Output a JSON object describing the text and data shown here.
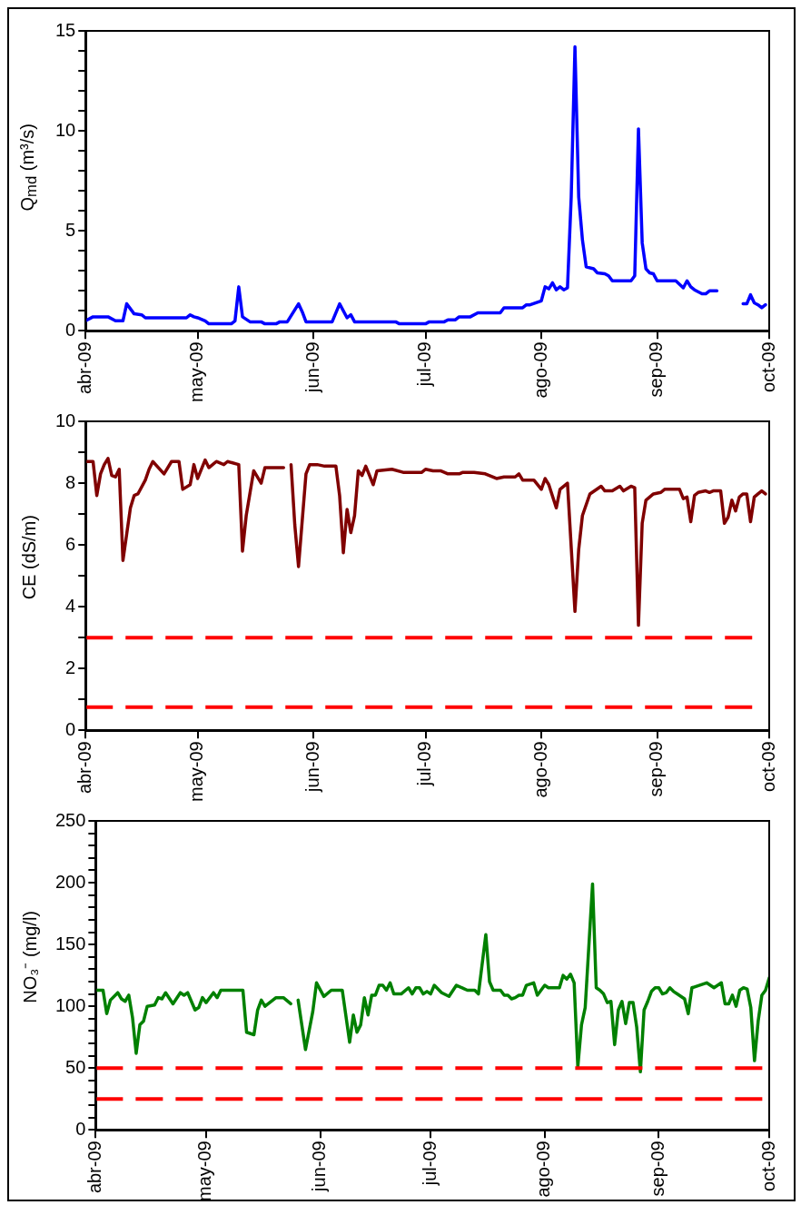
{
  "chart_data": [
    {
      "type": "line",
      "ylabel": "Q$_{md}$ (m³/s)",
      "marker": "none",
      "line_style": "solid",
      "xlim": [
        "2009-04-01",
        "2009-10-01"
      ],
      "xticks": [
        {
          "value": "2009-04-01",
          "label": "abr-09"
        },
        {
          "value": "2009-05-01",
          "label": "may-09"
        },
        {
          "value": "2009-06-01",
          "label": "jun-09"
        },
        {
          "value": "2009-07-01",
          "label": "jul-09"
        },
        {
          "value": "2009-08-01",
          "label": "ago-09"
        },
        {
          "value": "2009-09-01",
          "label": "sep-09"
        },
        {
          "value": "2009-10-01",
          "label": "oct-09"
        }
      ],
      "ylim": [
        0,
        15
      ],
      "yticks": [
        0,
        {
          "value": 1,
          "label": null
        },
        {
          "value": 2,
          "label": null
        },
        {
          "value": 3,
          "label": null
        },
        {
          "value": 4,
          "label": null
        },
        5,
        {
          "value": 6,
          "label": null
        },
        {
          "value": 7,
          "label": null
        },
        {
          "value": 8,
          "label": null
        },
        {
          "value": 9,
          "label": null
        },
        10,
        {
          "value": 11,
          "label": null
        },
        {
          "value": 12,
          "label": null
        },
        {
          "value": 13,
          "label": null
        },
        {
          "value": 14,
          "label": null
        },
        15
      ],
      "x": [
        "2009-04-01",
        "2009-04-03",
        "2009-04-07",
        "2009-04-09",
        "2009-04-11",
        "2009-04-12",
        "2009-04-14",
        "2009-04-16",
        "2009-04-17",
        "2009-04-28",
        "2009-04-29",
        "2009-04-30",
        "2009-05-01",
        "2009-05-03",
        "2009-05-04",
        "2009-05-10",
        "2009-05-11",
        "2009-05-12",
        "2009-05-13",
        "2009-05-15",
        "2009-05-18",
        "2009-05-19",
        "2009-05-22",
        "2009-05-23",
        "2009-05-25",
        "2009-05-28",
        "2009-05-29",
        "2009-05-30",
        "2009-06-06",
        "2009-06-08",
        "2009-06-10",
        "2009-06-11",
        "2009-06-12",
        "2009-06-23",
        "2009-06-24",
        "2009-07-01",
        "2009-07-02",
        "2009-07-06",
        "2009-07-07",
        "2009-07-09",
        "2009-07-10",
        "2009-07-13",
        "2009-07-15",
        "2009-07-21",
        "2009-07-22",
        "2009-07-27",
        "2009-07-28",
        "2009-07-29",
        "2009-08-01",
        "2009-08-02",
        "2009-08-03",
        "2009-08-04",
        "2009-08-05",
        "2009-08-06",
        "2009-08-07",
        "2009-08-08",
        "2009-08-09",
        "2009-08-10",
        "2009-08-11",
        "2009-08-12",
        "2009-08-13",
        "2009-08-15",
        "2009-08-16",
        "2009-08-18",
        "2009-08-19",
        "2009-08-20",
        "2009-08-25",
        "2009-08-26",
        "2009-08-27",
        "2009-08-28",
        "2009-08-29",
        "2009-08-30",
        "2009-08-31",
        "2009-09-01",
        "2009-09-06",
        "2009-09-08",
        "2009-09-09",
        "2009-09-10",
        "2009-09-11",
        "2009-09-13",
        "2009-09-14",
        "2009-09-15",
        "2009-09-17",
        "2009-09-20",
        "2009-09-24",
        "2009-09-25",
        "2009-09-26",
        "2009-09-27",
        "2009-09-28",
        "2009-09-29",
        "2009-09-30"
      ],
      "series": [
        {
          "color": "#0000ff",
          "values": [
            0.5,
            0.7,
            0.7,
            0.5,
            0.5,
            1.35,
            0.85,
            0.8,
            0.65,
            0.65,
            0.8,
            0.7,
            0.65,
            0.5,
            0.35,
            0.35,
            0.5,
            2.2,
            0.7,
            0.45,
            0.45,
            0.35,
            0.35,
            0.45,
            0.45,
            1.35,
            0.95,
            0.45,
            0.45,
            1.35,
            0.65,
            0.8,
            0.45,
            0.45,
            0.35,
            0.35,
            0.45,
            0.45,
            0.55,
            0.55,
            0.7,
            0.7,
            0.9,
            0.9,
            1.15,
            1.15,
            1.3,
            1.3,
            1.5,
            2.2,
            2.1,
            2.4,
            2.05,
            2.2,
            2.05,
            2.15,
            6.7,
            14.2,
            6.7,
            4.55,
            3.2,
            3.1,
            2.9,
            2.85,
            2.75,
            2.5,
            2.5,
            2.75,
            10.1,
            4.4,
            3.1,
            2.9,
            2.85,
            2.5,
            2.5,
            2.15,
            2.5,
            2.2,
            2.05,
            1.85,
            1.85,
            2.0,
            2.0,
            null,
            1.35,
            1.35,
            1.8,
            1.4,
            1.3,
            1.15,
            1.3
          ]
        }
      ]
    },
    {
      "type": "line",
      "ylabel": "CE  (dS/m)",
      "marker": "none",
      "line_style": "solid",
      "xlim": [
        "2009-04-01",
        "2009-10-01"
      ],
      "xticks": [
        {
          "value": "2009-04-01",
          "label": "abr-09"
        },
        {
          "value": "2009-05-01",
          "label": "may-09"
        },
        {
          "value": "2009-06-01",
          "label": "jun-09"
        },
        {
          "value": "2009-07-01",
          "label": "jul-09"
        },
        {
          "value": "2009-08-01",
          "label": "ago-09"
        },
        {
          "value": "2009-09-01",
          "label": "sep-09"
        },
        {
          "value": "2009-10-01",
          "label": "oct-09"
        }
      ],
      "ylim": [
        0,
        10
      ],
      "yticks": [
        0,
        {
          "value": 1,
          "label": null
        },
        2,
        {
          "value": 3,
          "label": null
        },
        4,
        {
          "value": 5,
          "label": null
        },
        6,
        {
          "value": 7,
          "label": null
        },
        8,
        {
          "value": 9,
          "label": null
        },
        10
      ],
      "ref_lines": [
        {
          "axis": "y",
          "value": 3,
          "color": "#ff0000",
          "line_style": "dashed"
        },
        {
          "axis": "y",
          "value": 0.75,
          "color": "#ff0000",
          "line_style": "dashed"
        }
      ],
      "x": [
        "2009-04-01",
        "2009-04-03",
        "2009-04-04",
        "2009-04-05",
        "2009-04-06",
        "2009-04-07",
        "2009-04-08",
        "2009-04-09",
        "2009-04-10",
        "2009-04-11",
        "2009-04-13",
        "2009-04-14",
        "2009-04-15",
        "2009-04-17",
        "2009-04-18",
        "2009-04-19",
        "2009-04-22",
        "2009-04-24",
        "2009-04-26",
        "2009-04-27",
        "2009-04-29",
        "2009-04-30",
        "2009-05-01",
        "2009-05-03",
        "2009-05-04",
        "2009-05-06",
        "2009-05-08",
        "2009-05-09",
        "2009-05-12",
        "2009-05-13",
        "2009-05-14",
        "2009-05-16",
        "2009-05-18",
        "2009-05-19",
        "2009-05-24",
        "2009-05-25",
        "2009-05-26",
        "2009-05-27",
        "2009-05-28",
        "2009-05-30",
        "2009-05-31",
        "2009-06-02",
        "2009-06-04",
        "2009-06-07",
        "2009-06-08",
        "2009-06-09",
        "2009-06-10",
        "2009-06-11",
        "2009-06-12",
        "2009-06-13",
        "2009-06-14",
        "2009-06-15",
        "2009-06-17",
        "2009-06-18",
        "2009-06-22",
        "2009-06-25",
        "2009-06-30",
        "2009-07-01",
        "2009-07-03",
        "2009-07-05",
        "2009-07-07",
        "2009-07-10",
        "2009-07-11",
        "2009-07-14",
        "2009-07-17",
        "2009-07-20",
        "2009-07-22",
        "2009-07-25",
        "2009-07-26",
        "2009-07-27",
        "2009-07-30",
        "2009-08-01",
        "2009-08-02",
        "2009-08-03",
        "2009-08-05",
        "2009-08-06",
        "2009-08-08",
        "2009-08-10",
        "2009-08-11",
        "2009-08-12",
        "2009-08-14",
        "2009-08-17",
        "2009-08-18",
        "2009-08-20",
        "2009-08-22",
        "2009-08-23",
        "2009-08-25",
        "2009-08-26",
        "2009-08-27",
        "2009-08-28",
        "2009-08-29",
        "2009-08-31",
        "2009-09-02",
        "2009-09-03",
        "2009-09-07",
        "2009-09-08",
        "2009-09-09",
        "2009-09-10",
        "2009-09-11",
        "2009-09-12",
        "2009-09-14",
        "2009-09-15",
        "2009-09-16",
        "2009-09-18",
        "2009-09-19",
        "2009-09-20",
        "2009-09-21",
        "2009-09-22",
        "2009-09-23",
        "2009-09-24",
        "2009-09-25",
        "2009-09-26",
        "2009-09-27",
        "2009-09-28",
        "2009-09-29",
        "2009-09-30"
      ],
      "series": [
        {
          "color": "#800000",
          "values": [
            8.7,
            8.7,
            7.6,
            8.3,
            8.6,
            8.8,
            8.25,
            8.2,
            8.45,
            5.5,
            7.2,
            7.6,
            7.65,
            8.1,
            8.45,
            8.7,
            8.3,
            8.7,
            8.7,
            7.8,
            7.95,
            8.6,
            8.15,
            8.75,
            8.5,
            8.7,
            8.6,
            8.7,
            8.6,
            5.8,
            6.95,
            8.4,
            8.0,
            8.5,
            8.5,
            null,
            8.6,
            6.65,
            5.3,
            8.3,
            8.6,
            8.6,
            8.55,
            8.55,
            7.6,
            5.75,
            7.15,
            6.4,
            6.95,
            8.4,
            8.25,
            8.55,
            7.95,
            8.4,
            8.45,
            8.35,
            8.35,
            8.45,
            8.4,
            8.4,
            8.3,
            8.3,
            8.35,
            8.35,
            8.3,
            8.15,
            8.2,
            8.2,
            8.3,
            8.1,
            8.1,
            7.8,
            8.15,
            7.95,
            7.2,
            7.8,
            8.0,
            3.85,
            5.85,
            6.95,
            7.65,
            7.9,
            7.75,
            7.75,
            7.9,
            7.75,
            7.9,
            7.85,
            3.4,
            6.7,
            7.45,
            7.65,
            7.7,
            7.8,
            7.8,
            7.5,
            7.55,
            6.75,
            7.6,
            7.7,
            7.75,
            7.7,
            7.75,
            7.75,
            6.7,
            6.9,
            7.45,
            7.1,
            7.55,
            7.65,
            7.65,
            6.75,
            7.55,
            7.65,
            7.75,
            7.65
          ]
        }
      ]
    },
    {
      "type": "line",
      "ylabel": "NO₃⁻ (mg/l)",
      "marker": "none",
      "line_style": "solid",
      "xlim": [
        "2009-04-01",
        "2009-10-01"
      ],
      "xticks": [
        {
          "value": "2009-04-01",
          "label": "abr-09"
        },
        {
          "value": "2009-05-01",
          "label": "may-09"
        },
        {
          "value": "2009-06-01",
          "label": "jun-09"
        },
        {
          "value": "2009-07-01",
          "label": "jul-09"
        },
        {
          "value": "2009-08-01",
          "label": "ago-09"
        },
        {
          "value": "2009-09-01",
          "label": "sep-09"
        },
        {
          "value": "2009-10-01",
          "label": "oct-09"
        }
      ],
      "ylim": [
        0,
        250
      ],
      "yticks": [
        0,
        {
          "value": 10,
          "label": null
        },
        {
          "value": 20,
          "label": null
        },
        {
          "value": 30,
          "label": null
        },
        {
          "value": 40,
          "label": null
        },
        50,
        {
          "value": 60,
          "label": null
        },
        {
          "value": 70,
          "label": null
        },
        {
          "value": 80,
          "label": null
        },
        {
          "value": 90,
          "label": null
        },
        100,
        {
          "value": 110,
          "label": null
        },
        {
          "value": 120,
          "label": null
        },
        {
          "value": 130,
          "label": null
        },
        {
          "value": 140,
          "label": null
        },
        150,
        {
          "value": 160,
          "label": null
        },
        {
          "value": 170,
          "label": null
        },
        {
          "value": 180,
          "label": null
        },
        {
          "value": 190,
          "label": null
        },
        200,
        {
          "value": 210,
          "label": null
        },
        {
          "value": 220,
          "label": null
        },
        {
          "value": 230,
          "label": null
        },
        {
          "value": 240,
          "label": null
        },
        250
      ],
      "ref_lines": [
        {
          "axis": "y",
          "value": 50,
          "color": "#ff0000",
          "line_style": "dashed"
        },
        {
          "axis": "y",
          "value": 25,
          "color": "#ff0000",
          "line_style": "dashed"
        }
      ],
      "x": [
        "2009-04-01",
        "2009-04-03",
        "2009-04-04",
        "2009-04-05",
        "2009-04-07",
        "2009-04-08",
        "2009-04-09",
        "2009-04-10",
        "2009-04-11",
        "2009-04-12",
        "2009-04-13",
        "2009-04-14",
        "2009-04-15",
        "2009-04-17",
        "2009-04-18",
        "2009-04-19",
        "2009-04-20",
        "2009-04-22",
        "2009-04-24",
        "2009-04-25",
        "2009-04-26",
        "2009-04-28",
        "2009-04-29",
        "2009-04-30",
        "2009-05-01",
        "2009-05-03",
        "2009-05-04",
        "2009-05-05",
        "2009-05-11",
        "2009-05-12",
        "2009-05-14",
        "2009-05-15",
        "2009-05-16",
        "2009-05-17",
        "2009-05-20",
        "2009-05-22",
        "2009-05-24",
        "2009-05-25",
        "2009-05-26",
        "2009-05-28",
        "2009-05-30",
        "2009-05-31",
        "2009-06-02",
        "2009-06-04",
        "2009-06-07",
        "2009-06-09",
        "2009-06-10",
        "2009-06-11",
        "2009-06-12",
        "2009-06-13",
        "2009-06-14",
        "2009-06-15",
        "2009-06-16",
        "2009-06-17",
        "2009-06-18",
        "2009-06-19",
        "2009-06-20",
        "2009-06-21",
        "2009-06-23",
        "2009-06-25",
        "2009-06-26",
        "2009-06-27",
        "2009-06-28",
        "2009-06-29",
        "2009-06-30",
        "2009-07-01",
        "2009-07-02",
        "2009-07-04",
        "2009-07-06",
        "2009-07-08",
        "2009-07-11",
        "2009-07-13",
        "2009-07-14",
        "2009-07-16",
        "2009-07-17",
        "2009-07-18",
        "2009-07-20",
        "2009-07-21",
        "2009-07-22",
        "2009-07-23",
        "2009-07-24",
        "2009-07-25",
        "2009-07-26",
        "2009-07-27",
        "2009-07-29",
        "2009-07-30",
        "2009-08-01",
        "2009-08-02",
        "2009-08-05",
        "2009-08-06",
        "2009-08-07",
        "2009-08-08",
        "2009-08-09",
        "2009-08-10",
        "2009-08-11",
        "2009-08-12",
        "2009-08-14",
        "2009-08-15",
        "2009-08-16",
        "2009-08-17",
        "2009-08-18",
        "2009-08-19",
        "2009-08-20",
        "2009-08-21",
        "2009-08-22",
        "2009-08-23",
        "2009-08-24",
        "2009-08-25",
        "2009-08-26",
        "2009-08-27",
        "2009-08-28",
        "2009-08-29",
        "2009-08-30",
        "2009-08-31",
        "2009-09-01",
        "2009-09-02",
        "2009-09-03",
        "2009-09-04",
        "2009-09-05",
        "2009-09-06",
        "2009-09-08",
        "2009-09-09",
        "2009-09-10",
        "2009-09-12",
        "2009-09-14",
        "2009-09-16",
        "2009-09-18",
        "2009-09-19",
        "2009-09-20",
        "2009-09-21",
        "2009-09-22",
        "2009-09-23",
        "2009-09-24",
        "2009-09-25",
        "2009-09-26",
        "2009-09-27",
        "2009-09-28",
        "2009-09-29",
        "2009-09-30",
        "2009-10-01"
      ],
      "series": [
        {
          "color": "#008000",
          "values": [
            113,
            113,
            94,
            105,
            111,
            106,
            104,
            109,
            91,
            62,
            85,
            88,
            100,
            101,
            107,
            106,
            111,
            102,
            111,
            109,
            111,
            97,
            99,
            107,
            103,
            111,
            107,
            113,
            113,
            79,
            77,
            97,
            105,
            100,
            107,
            107,
            102,
            null,
            105,
            65,
            96,
            119,
            108,
            113,
            113,
            71,
            93,
            79,
            85,
            107,
            93,
            109,
            109,
            117,
            117,
            113,
            119,
            110,
            110,
            115,
            110,
            115,
            115,
            110,
            112,
            110,
            117,
            111,
            108,
            117,
            113,
            113,
            110,
            158,
            120,
            113,
            113,
            109,
            109,
            106,
            107,
            109,
            109,
            117,
            119,
            109,
            117,
            115,
            115,
            125,
            122,
            126,
            119,
            51,
            85,
            99,
            199,
            115,
            113,
            110,
            103,
            104,
            69,
            97,
            104,
            86,
            103,
            103,
            83,
            47,
            97,
            104,
            112,
            115,
            115,
            110,
            111,
            115,
            112,
            110,
            106,
            94,
            115,
            117,
            119,
            115,
            119,
            102,
            102,
            109,
            100,
            113,
            115,
            114,
            99,
            56,
            88,
            109,
            113,
            123
          ]
        }
      ]
    }
  ]
}
